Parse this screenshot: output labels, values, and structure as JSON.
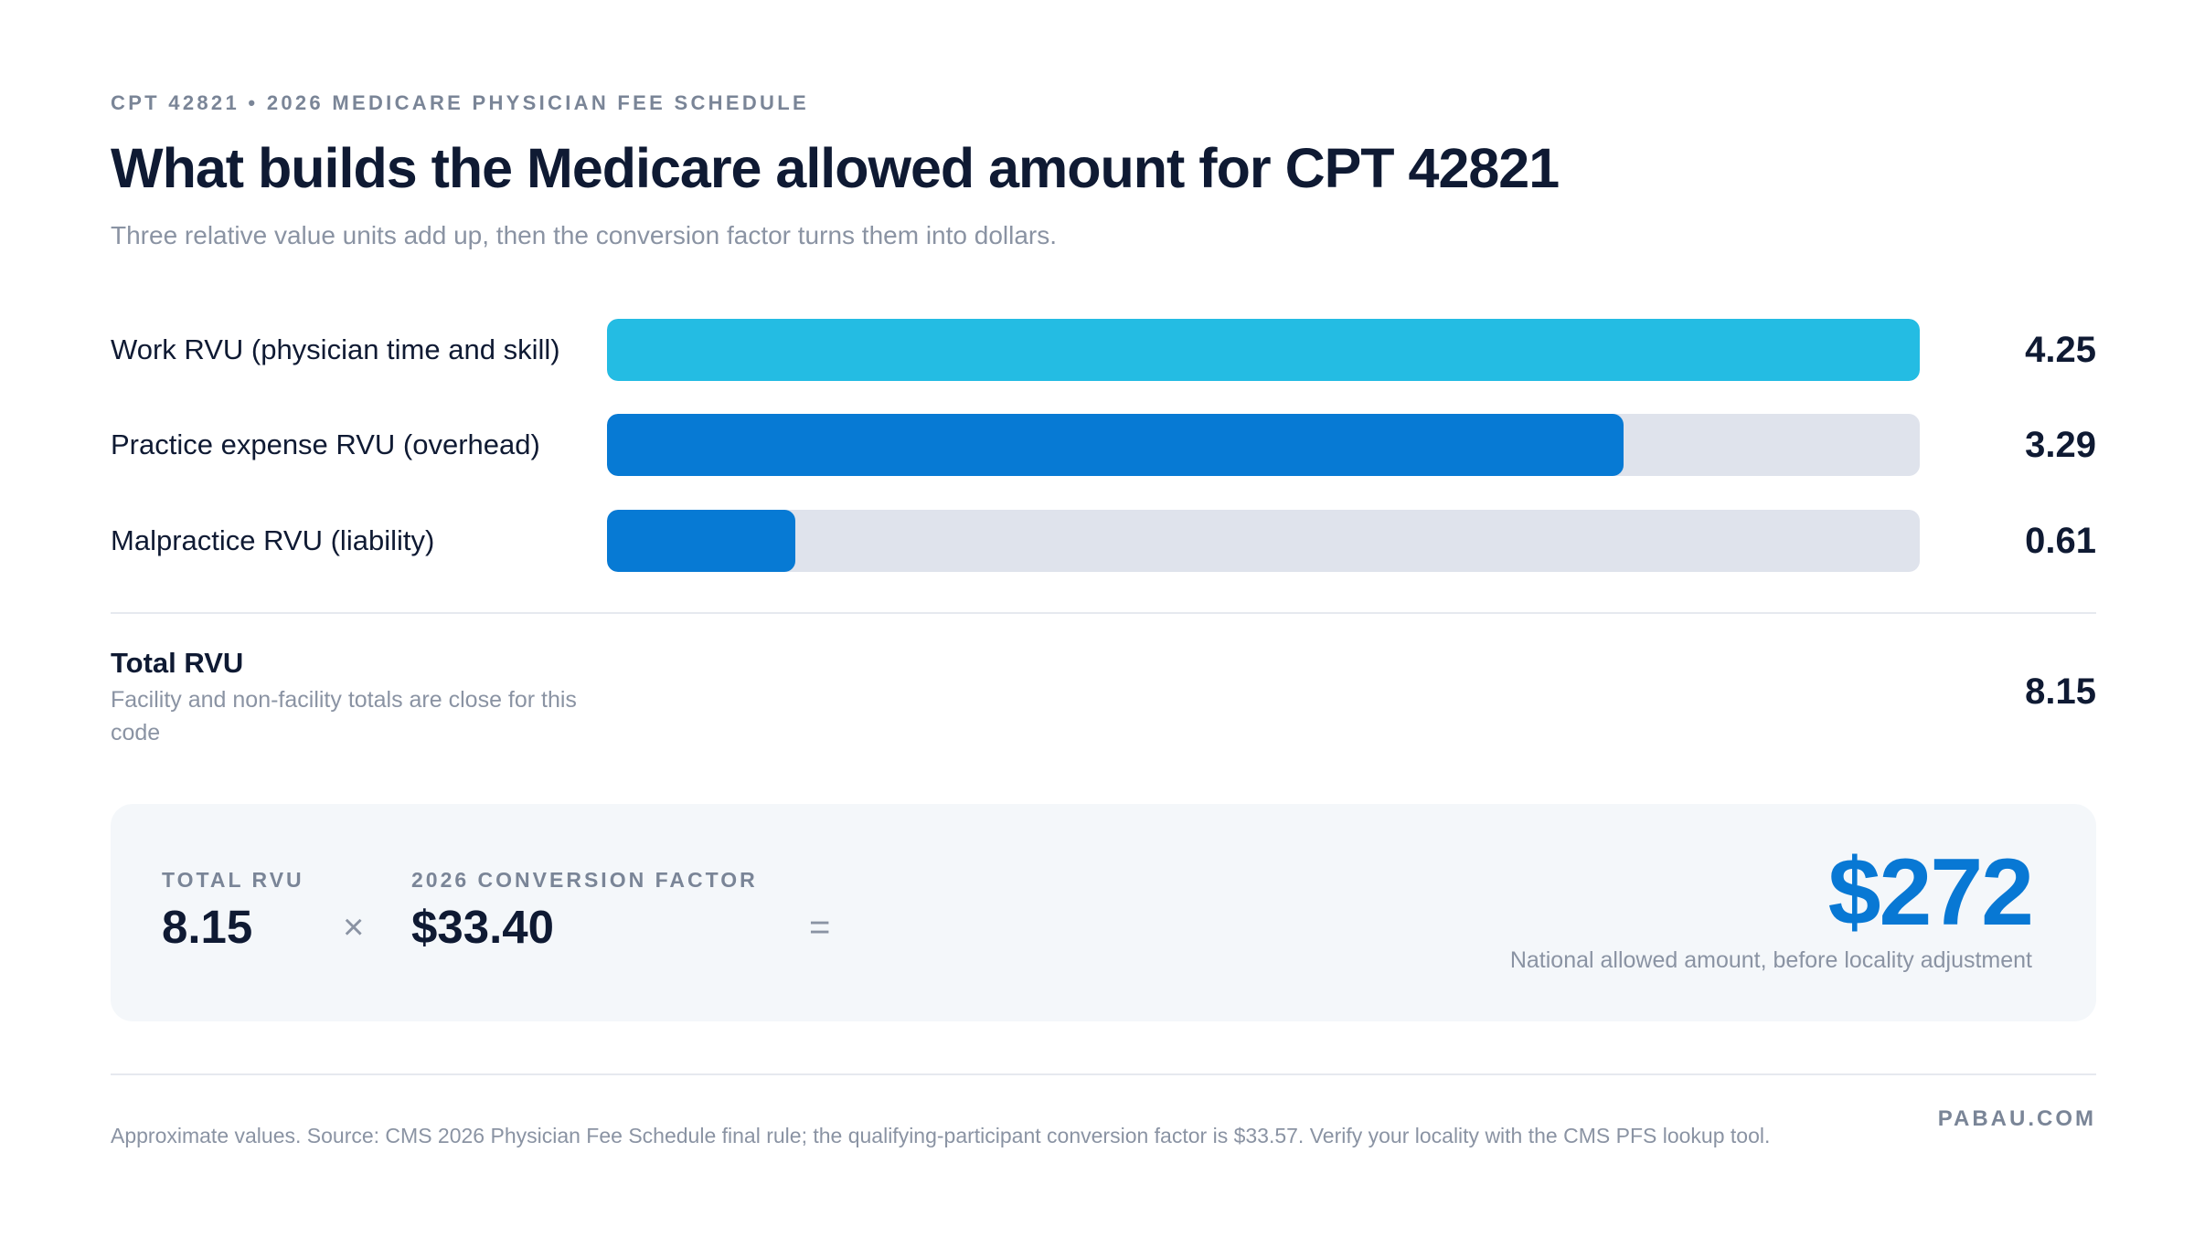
{
  "header": {
    "eyebrow": "CPT 42821 • 2026 MEDICARE PHYSICIAN FEE SCHEDULE",
    "title": "What builds the Medicare allowed amount for CPT 42821",
    "subtitle": "Three relative value units add up, then the conversion factor turns them into dollars."
  },
  "chart_data": {
    "type": "bar",
    "orientation": "horizontal",
    "categories": [
      "Work RVU (physician time and skill)",
      "Practice expense RVU (overhead)",
      "Malpractice RVU (liability)"
    ],
    "values": [
      4.25,
      3.29,
      0.61
    ],
    "value_labels": [
      "4.25",
      "3.29",
      "0.61"
    ],
    "xlim": [
      0,
      4.25
    ],
    "colors": [
      "#24bce3",
      "#077ad4",
      "#077ad4"
    ],
    "track_color": "#dfe3ec",
    "grid": false
  },
  "total": {
    "label": "Total RVU",
    "note": "Facility and non-facility totals are close for this code",
    "value": "8.15"
  },
  "calculation": {
    "rvu_caption": "TOTAL RVU",
    "rvu_value": "8.15",
    "times_symbol": "×",
    "factor_caption": "2026 CONVERSION FACTOR",
    "factor_value": "$33.40",
    "equals_symbol": "=",
    "result": "$272",
    "result_note": "National allowed amount, before locality adjustment",
    "result_color": "#0878d4"
  },
  "footer": {
    "note": "Approximate values. Source: CMS 2026 Physician Fee Schedule final rule; the qualifying-participant conversion factor is $33.57. Verify your locality with the CMS PFS lookup tool.",
    "brand": "PABAU.COM"
  }
}
